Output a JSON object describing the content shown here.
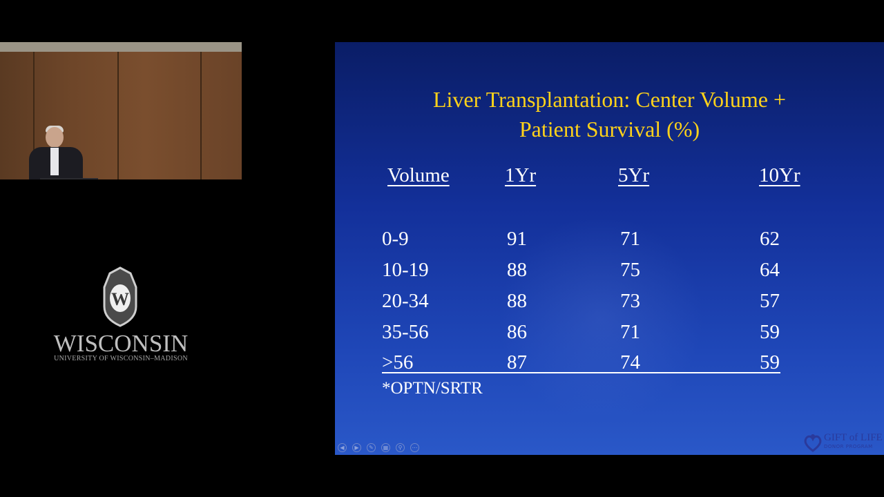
{
  "logo": {
    "wordmark": "WISCONSIN",
    "subtitle": "UNIVERSITY OF WISCONSIN–MADISON",
    "crest_letter": "W"
  },
  "slide": {
    "title_line1": "Liver Transplantation: Center Volume +",
    "title_line2": "Patient Survival (%)",
    "headers": [
      "Volume",
      "1Yr",
      "5Yr",
      "10Yr"
    ],
    "rows": [
      [
        "0-9",
        "91",
        "71",
        "62"
      ],
      [
        "10-19",
        "88",
        "75",
        "64"
      ],
      [
        "20-34",
        "88",
        "73",
        "57"
      ],
      [
        "35-56",
        "86",
        "71",
        "59"
      ],
      [
        ">56",
        "87",
        "74",
        "59"
      ]
    ],
    "source": "*OPTN/SRTR",
    "footer_logo": "GIFT of LIFE",
    "footer_logo_sub": "DONOR PROGRAM"
  },
  "controls": {
    "icons": [
      "previous-icon",
      "next-icon",
      "pen-icon",
      "slides-icon",
      "zoom-icon",
      "more-icon"
    ]
  },
  "colors": {
    "title": "#ffd21a",
    "slide_top": "#0a1d66",
    "slide_bottom": "#2a58c8",
    "text": "#ffffff"
  }
}
